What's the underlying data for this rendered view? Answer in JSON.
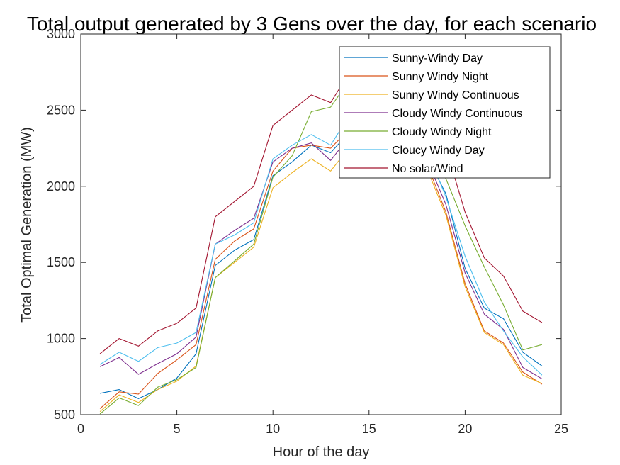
{
  "chart_data": {
    "type": "line",
    "title": "Total output generated by 3 Gens over the day, for each scenario",
    "xlabel": "Hour of the day",
    "ylabel": "Total Optimal Generation (MW)",
    "xlim": [
      0,
      25
    ],
    "ylim": [
      500,
      3000
    ],
    "xticks": [
      0,
      5,
      10,
      15,
      20,
      25
    ],
    "yticks": [
      500,
      1000,
      1500,
      2000,
      2500,
      3000
    ],
    "grid": false,
    "legend_position": "top-right",
    "x": [
      1,
      2,
      3,
      4,
      5,
      6,
      7,
      8,
      9,
      10,
      11,
      12,
      13,
      14,
      15,
      16,
      17,
      18,
      19,
      20,
      21,
      22,
      23,
      24
    ],
    "series": [
      {
        "name": "Sunny-Windy Day",
        "color": "#0072BD",
        "values": [
          640,
          665,
          605,
          665,
          740,
          900,
          1480,
          1580,
          1650,
          2070,
          2160,
          2270,
          2220,
          2360,
          2450,
          2470,
          2400,
          2200,
          1950,
          1460,
          1200,
          1130,
          910,
          820
        ]
      },
      {
        "name": "Sunny Windy Night",
        "color": "#D95319",
        "values": [
          540,
          650,
          635,
          770,
          860,
          960,
          1520,
          1640,
          1720,
          2100,
          2250,
          2270,
          2250,
          2380,
          2450,
          2460,
          2380,
          2150,
          1830,
          1360,
          1050,
          970,
          780,
          700
        ]
      },
      {
        "name": "Sunny Windy Continuous",
        "color": "#EDB120",
        "values": [
          520,
          630,
          580,
          665,
          720,
          820,
          1400,
          1500,
          1600,
          1990,
          2090,
          2180,
          2100,
          2260,
          2370,
          2380,
          2310,
          2120,
          1810,
          1340,
          1040,
          960,
          760,
          705
        ]
      },
      {
        "name": "Cloudy Windy Continuous",
        "color": "#7E2F8E",
        "values": [
          815,
          875,
          765,
          835,
          900,
          1010,
          1620,
          1710,
          1790,
          2160,
          2250,
          2285,
          2170,
          2330,
          2420,
          2450,
          2380,
          2180,
          1880,
          1430,
          1160,
          1060,
          810,
          735
        ]
      },
      {
        "name": "Cloudy Windy Night",
        "color": "#77AC30",
        "values": [
          505,
          610,
          560,
          680,
          730,
          810,
          1400,
          1510,
          1620,
          2060,
          2200,
          2490,
          2520,
          2700,
          2720,
          2700,
          2560,
          2300,
          2050,
          1740,
          1470,
          1220,
          925,
          960
        ]
      },
      {
        "name": "Cloucy Windy Day",
        "color": "#4DBEEE",
        "values": [
          830,
          910,
          850,
          940,
          970,
          1040,
          1620,
          1680,
          1760,
          2180,
          2270,
          2340,
          2270,
          2470,
          2560,
          2560,
          2480,
          2240,
          1930,
          1540,
          1240,
          1050,
          880,
          760
        ]
      },
      {
        "name": "No solar/Wind",
        "color": "#A2142F",
        "values": [
          900,
          1000,
          950,
          1050,
          1100,
          1200,
          1800,
          1900,
          2000,
          2400,
          2500,
          2600,
          2550,
          2750,
          2850,
          2850,
          2750,
          2500,
          2250,
          1830,
          1530,
          1410,
          1180,
          1105
        ]
      }
    ]
  }
}
